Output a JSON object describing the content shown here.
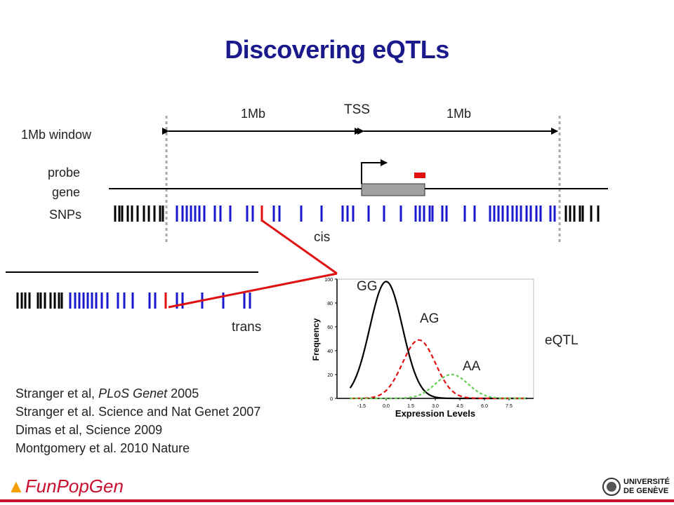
{
  "title": "Discovering eQTLs",
  "labels": {
    "window": "1Mb window",
    "probe": "probe",
    "gene": "gene",
    "snps": "SNPs",
    "mb_left": "1Mb",
    "tss": "TSS",
    "mb_right": "1Mb",
    "cis": "cis",
    "trans": "trans",
    "eqtl": "eQTL"
  },
  "plot": {
    "y_axis_label": "Frequency",
    "x_axis_label": "Expression Levels",
    "y_ticks": [
      "0",
      "20",
      "40",
      "60",
      "80",
      "100"
    ],
    "x_ticks": [
      "-1.5",
      "0.0",
      "1.5",
      "3.0",
      "4.5",
      "6.0",
      "7.5"
    ],
    "x_range": [
      -3,
      9
    ],
    "y_range": [
      0,
      100
    ],
    "curves": [
      {
        "name": "GG",
        "mean": 0.0,
        "sd": 1.0,
        "peak": 98,
        "color": "#000000",
        "dash": "none"
      },
      {
        "name": "AG",
        "mean": 2.0,
        "sd": 1.0,
        "peak": 49,
        "color": "#e01010",
        "dash": "6,4"
      },
      {
        "name": "AA",
        "mean": 4.0,
        "sd": 1.0,
        "peak": 20,
        "color": "#66cc55",
        "dash": "4,3"
      }
    ]
  },
  "references": [
    {
      "pre": "Stranger et al, ",
      "italic": "PLoS Genet",
      "post": " 2005"
    },
    {
      "pre": "Stranger et al. Science and Nat Genet 2007",
      "italic": "",
      "post": ""
    },
    {
      "pre": "Dimas et al, Science 2009",
      "italic": "",
      "post": ""
    },
    {
      "pre": "Montgomery et al. 2010 Nature",
      "italic": "",
      "post": ""
    }
  ],
  "logos": {
    "left": "FunPopGen",
    "right_line1": "UNIVERSITÉ",
    "right_line2": "DE GENÈVE"
  },
  "colors": {
    "title": "#1a1a8c",
    "snp_cis": "#1a1acc",
    "snp_outside": "#000000",
    "highlight": "#e01010",
    "gene_box": "#a0a0a0"
  }
}
